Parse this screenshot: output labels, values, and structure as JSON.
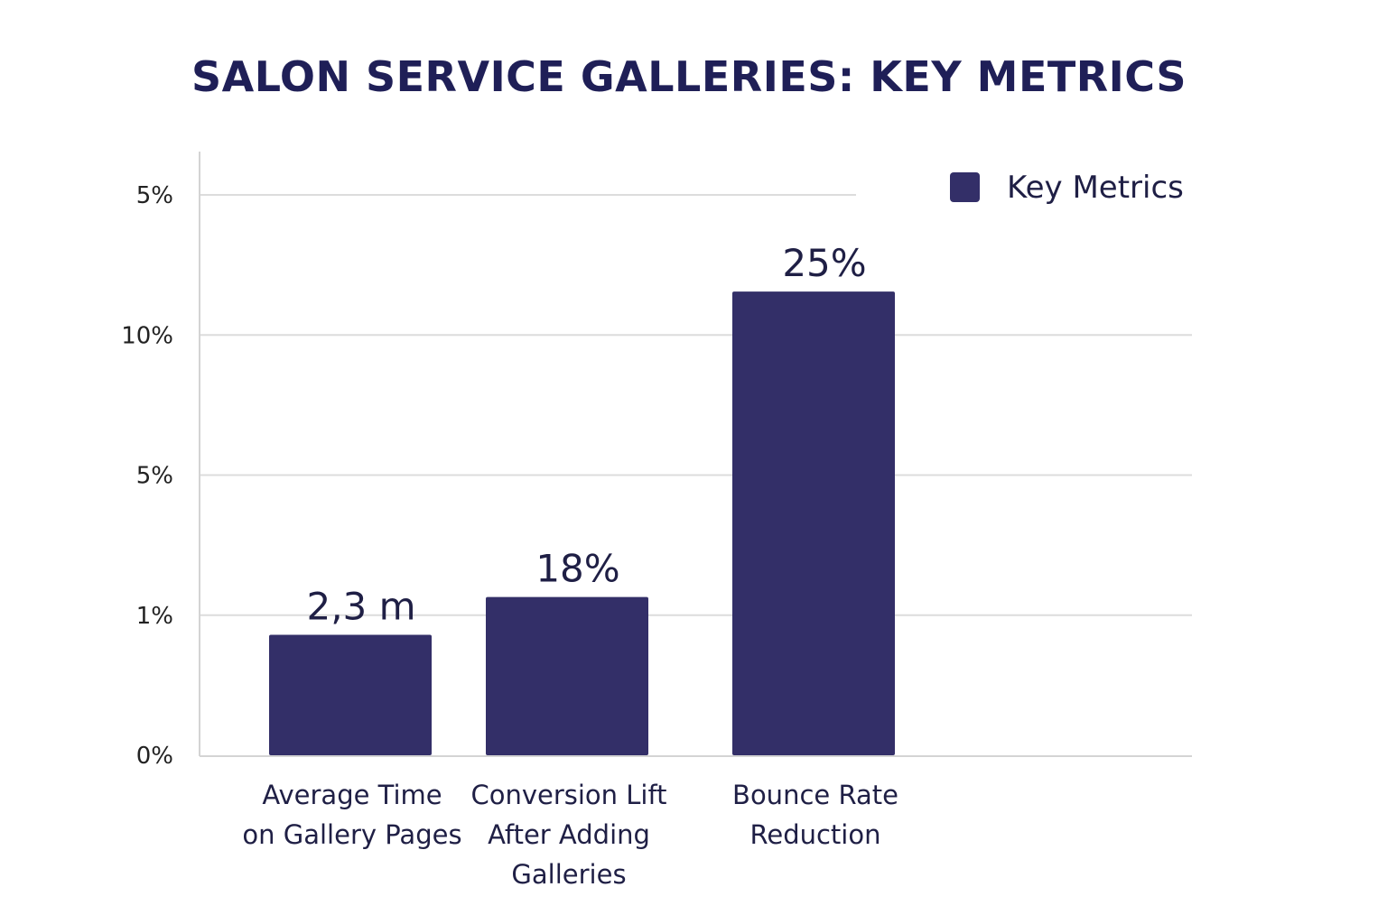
{
  "chart_data": {
    "type": "bar",
    "title": "SALON SERVICE GALLERIES: KEY METRICS",
    "xlabel": "",
    "ylabel": "",
    "y_tick_labels": [
      "0%",
      "1%",
      "5%",
      "10%",
      "5%"
    ],
    "y_tick_positions": [
      0,
      1,
      2,
      3,
      4
    ],
    "ylim": [
      0,
      4
    ],
    "grid": true,
    "legend_position": "top-right",
    "categories": [
      [
        "Average Time",
        "on Gallery Pages"
      ],
      [
        "Conversion Lift",
        "After Adding",
        "Galleries"
      ],
      [
        "Bounce Rate",
        "Reduction"
      ]
    ],
    "series": [
      {
        "name": "Key Metrics",
        "color": "#332f68",
        "values": [
          0.86,
          1.13,
          3.31
        ],
        "data_labels": [
          "2,3 m",
          "18%",
          "25%"
        ]
      }
    ]
  }
}
